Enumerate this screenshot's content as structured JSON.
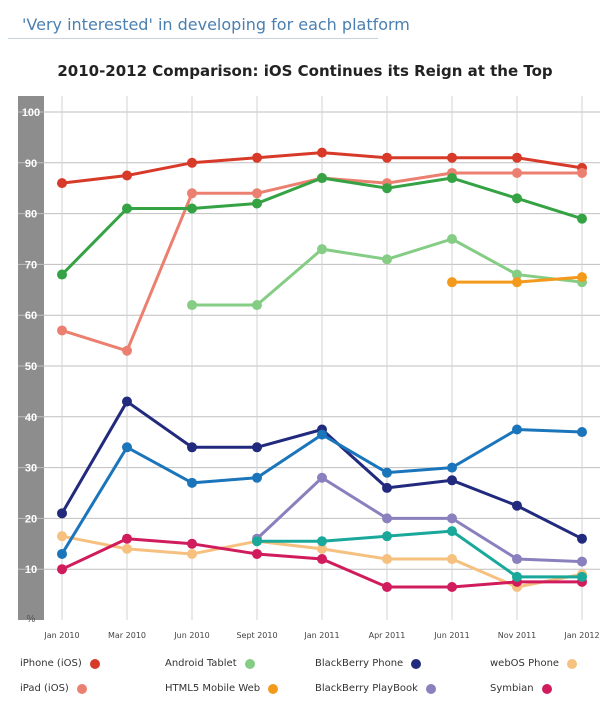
{
  "header": {
    "title": "'Very interested' in developing for each platform"
  },
  "chart_data": {
    "type": "line",
    "title": "2010-2012 Comparison: iOS Continues its Reign at the Top",
    "ylabel": "%",
    "ylim": [
      0,
      100
    ],
    "yticks": [
      10,
      20,
      30,
      40,
      50,
      60,
      70,
      80,
      90,
      100
    ],
    "grid": true,
    "legend_position": "bottom",
    "categories": [
      "Jan 2010",
      "Mar 2010",
      "Jun 2010",
      "Sept 2010",
      "Jan 2011",
      "Apr 2011",
      "Jun 2011",
      "Nov 2011",
      "Jan 2012"
    ],
    "series": [
      {
        "name": "iPhone (iOS)",
        "color": "#d83a2a",
        "values": [
          86,
          87.5,
          90,
          91,
          92,
          91,
          91,
          91,
          89
        ]
      },
      {
        "name": "iPad (iOS)",
        "color": "#ec8070",
        "values": [
          57,
          53,
          84,
          84,
          87,
          86,
          88,
          88,
          88
        ]
      },
      {
        "name": "Android Tablet",
        "color": "#85cc85",
        "values": [
          null,
          null,
          62,
          62,
          73,
          71,
          75,
          68,
          66.5
        ]
      },
      {
        "name": "HTML5 Mobile Web",
        "color": "#f39a1c",
        "values": [
          null,
          null,
          null,
          null,
          null,
          null,
          66.5,
          66.5,
          67.5
        ]
      },
      {
        "name": "BlackBerry Phone",
        "color": "#222a7e",
        "values": [
          21,
          43,
          34,
          34,
          37.5,
          26,
          27.5,
          22.5,
          16
        ]
      },
      {
        "name": "BlackBerry PlayBook",
        "color": "#8a80bd",
        "values": [
          null,
          null,
          null,
          16,
          28,
          20,
          20,
          12,
          11.5
        ]
      },
      {
        "name": "webOS Phone",
        "color": "#f6c07f",
        "values": [
          16.5,
          14,
          13,
          15.5,
          14,
          12,
          12,
          6.5,
          9
        ]
      },
      {
        "name": "Symbian",
        "color": "#d01c5c",
        "values": [
          10,
          16,
          15,
          13,
          12,
          6.5,
          6.5,
          7.5,
          7.5
        ]
      },
      {
        "name": "",
        "color": "#35a244",
        "values": [
          68,
          81,
          81,
          82,
          87,
          85,
          87,
          83,
          79
        ]
      },
      {
        "name": "",
        "color": "#1b75bb",
        "values": [
          13,
          34,
          27,
          28,
          36.5,
          29,
          30,
          37.5,
          37
        ]
      },
      {
        "name": "",
        "color": "#19a89a",
        "values": [
          null,
          null,
          null,
          15.5,
          15.5,
          16.5,
          17.5,
          8.5,
          8.5
        ]
      }
    ]
  }
}
